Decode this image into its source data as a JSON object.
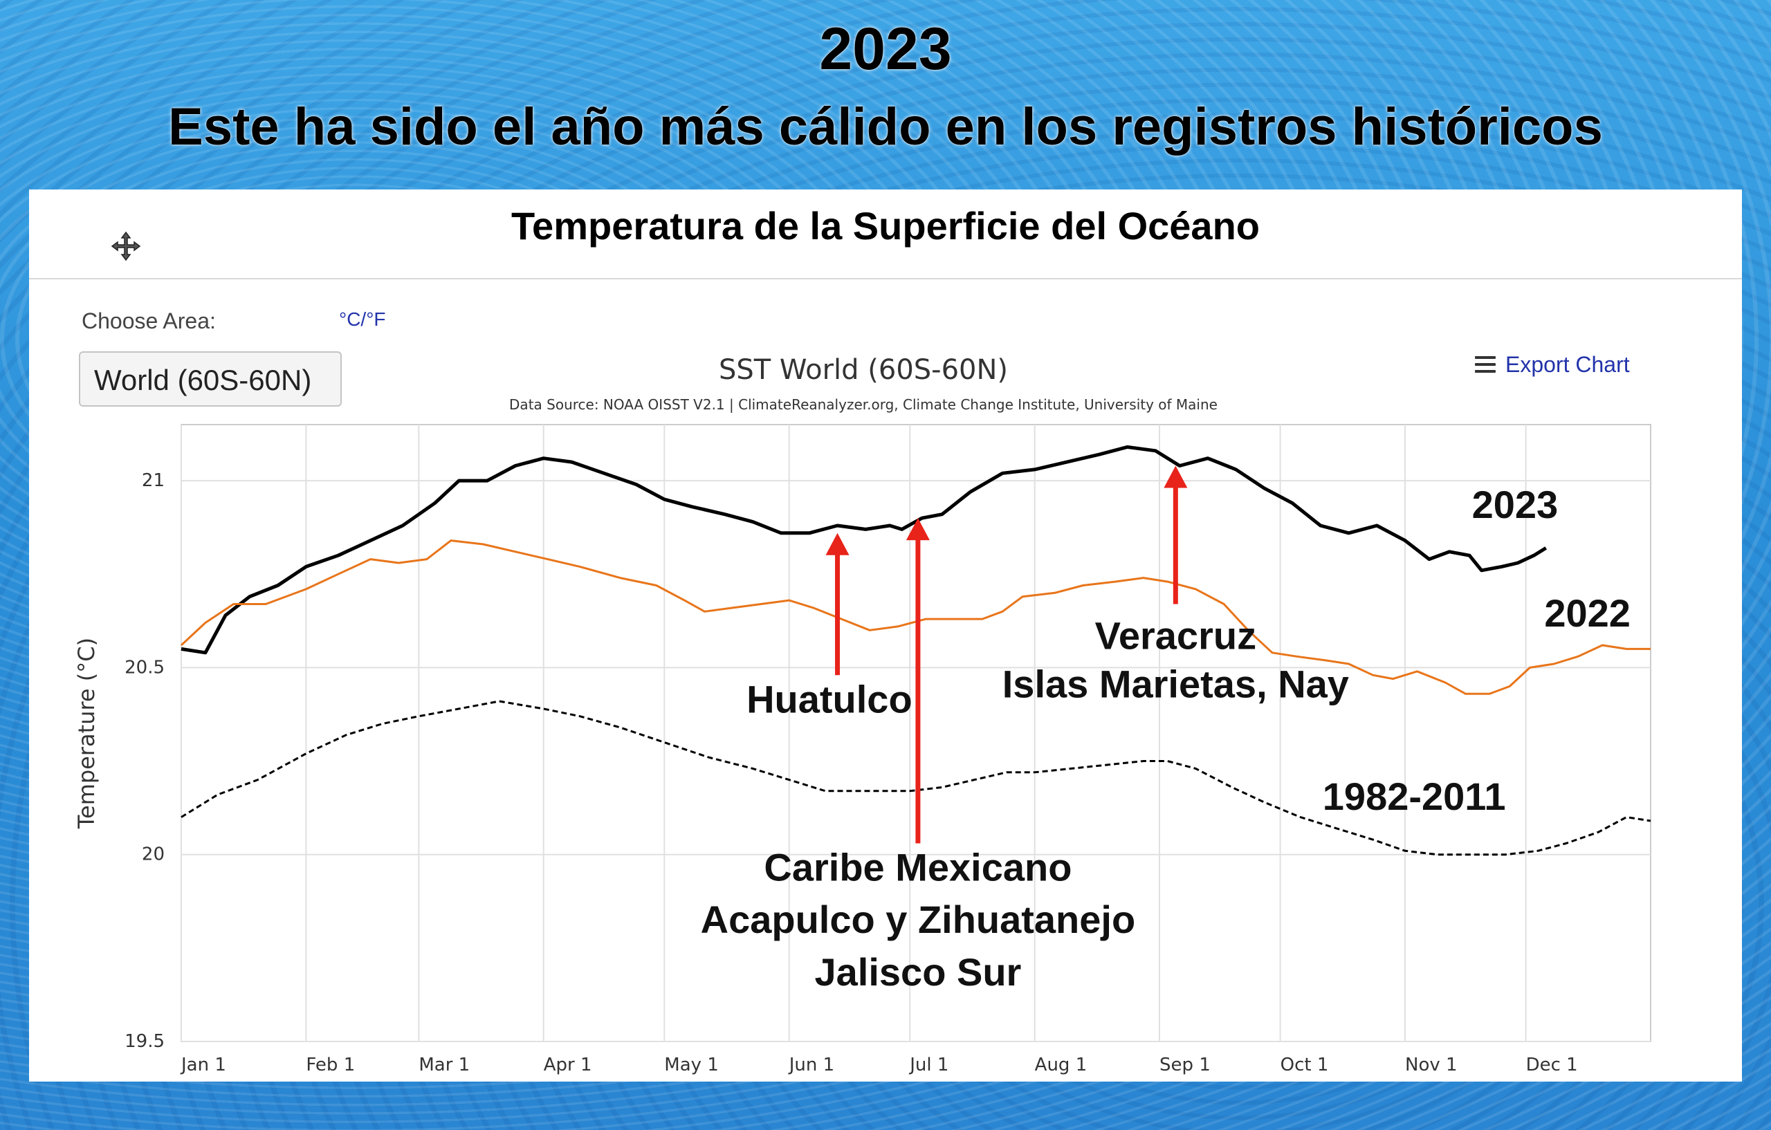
{
  "headline": {
    "year": "2023",
    "subtitle": "Este ha sido el año más cálido en los registros históricos"
  },
  "panel": {
    "title": "Temperatura de la Superficie del Océano",
    "choose_area_label": "Choose Area:",
    "unit_toggle": "°C/°F",
    "area_selected": "World (60S-60N)",
    "export_label": "Export Chart"
  },
  "chart_data": {
    "type": "line",
    "title": "SST World (60S-60N)",
    "subtitle": "Data Source: NOAA OISST V2.1 | ClimateReanalyzer.org, Climate Change Institute, University of Maine",
    "xlabel": "",
    "ylabel": "Temperature (°C)",
    "x_type": "day_of_year",
    "xlim": [
      1,
      366
    ],
    "ylim": [
      19.5,
      21.15
    ],
    "yticks": [
      19.5,
      20,
      20.5,
      21
    ],
    "ytick_labels": [
      "19.5",
      "20",
      "20.5",
      "21"
    ],
    "xticks": [
      1,
      32,
      60,
      91,
      121,
      152,
      182,
      213,
      244,
      274,
      305,
      335
    ],
    "xtick_labels": [
      "Jan 1",
      "Feb 1",
      "Mar 1",
      "Apr 1",
      "May 1",
      "Jun 1",
      "Jul 1",
      "Aug 1",
      "Sep 1",
      "Oct 1",
      "Nov 1",
      "Dec 1"
    ],
    "grid": true,
    "legend": "none",
    "series": [
      {
        "name": "2023",
        "color": "#000000",
        "dash": "solid",
        "points": [
          [
            1,
            20.55
          ],
          [
            7,
            20.54
          ],
          [
            12,
            20.64
          ],
          [
            18,
            20.69
          ],
          [
            25,
            20.72
          ],
          [
            32,
            20.77
          ],
          [
            40,
            20.8
          ],
          [
            48,
            20.84
          ],
          [
            56,
            20.88
          ],
          [
            64,
            20.94
          ],
          [
            70,
            21.0
          ],
          [
            77,
            21.0
          ],
          [
            84,
            21.04
          ],
          [
            91,
            21.06
          ],
          [
            98,
            21.05
          ],
          [
            106,
            21.02
          ],
          [
            114,
            20.99
          ],
          [
            121,
            20.95
          ],
          [
            128,
            20.93
          ],
          [
            136,
            20.91
          ],
          [
            143,
            20.89
          ],
          [
            150,
            20.86
          ],
          [
            157,
            20.86
          ],
          [
            164,
            20.88
          ],
          [
            171,
            20.87
          ],
          [
            177,
            20.88
          ],
          [
            180,
            20.87
          ],
          [
            185,
            20.9
          ],
          [
            190,
            20.91
          ],
          [
            197,
            20.97
          ],
          [
            205,
            21.02
          ],
          [
            213,
            21.03
          ],
          [
            221,
            21.05
          ],
          [
            229,
            21.07
          ],
          [
            236,
            21.09
          ],
          [
            243,
            21.08
          ],
          [
            249,
            21.04
          ],
          [
            256,
            21.06
          ],
          [
            263,
            21.03
          ],
          [
            270,
            20.98
          ],
          [
            277,
            20.94
          ],
          [
            284,
            20.88
          ],
          [
            291,
            20.86
          ],
          [
            298,
            20.88
          ],
          [
            305,
            20.84
          ],
          [
            311,
            20.79
          ],
          [
            316,
            20.81
          ],
          [
            321,
            20.8
          ],
          [
            324,
            20.76
          ],
          [
            329,
            20.77
          ],
          [
            333,
            20.78
          ],
          [
            337,
            20.8
          ],
          [
            340,
            20.82
          ]
        ]
      },
      {
        "name": "2022",
        "color": "#e8751a",
        "dash": "solid",
        "points": [
          [
            1,
            20.56
          ],
          [
            7,
            20.62
          ],
          [
            14,
            20.67
          ],
          [
            22,
            20.67
          ],
          [
            32,
            20.71
          ],
          [
            40,
            20.75
          ],
          [
            48,
            20.79
          ],
          [
            55,
            20.78
          ],
          [
            62,
            20.79
          ],
          [
            68,
            20.84
          ],
          [
            76,
            20.83
          ],
          [
            84,
            20.81
          ],
          [
            92,
            20.79
          ],
          [
            100,
            20.77
          ],
          [
            110,
            20.74
          ],
          [
            119,
            20.72
          ],
          [
            126,
            20.68
          ],
          [
            131,
            20.65
          ],
          [
            138,
            20.66
          ],
          [
            145,
            20.67
          ],
          [
            152,
            20.68
          ],
          [
            158,
            20.66
          ],
          [
            165,
            20.63
          ],
          [
            172,
            20.6
          ],
          [
            179,
            20.61
          ],
          [
            186,
            20.63
          ],
          [
            193,
            20.63
          ],
          [
            200,
            20.63
          ],
          [
            205,
            20.65
          ],
          [
            210,
            20.69
          ],
          [
            218,
            20.7
          ],
          [
            225,
            20.72
          ],
          [
            233,
            20.73
          ],
          [
            240,
            20.74
          ],
          [
            246,
            20.73
          ],
          [
            253,
            20.71
          ],
          [
            260,
            20.67
          ],
          [
            266,
            20.6
          ],
          [
            272,
            20.54
          ],
          [
            278,
            20.53
          ],
          [
            285,
            20.52
          ],
          [
            291,
            20.51
          ],
          [
            297,
            20.48
          ],
          [
            302,
            20.47
          ],
          [
            308,
            20.49
          ],
          [
            315,
            20.46
          ],
          [
            320,
            20.43
          ],
          [
            326,
            20.43
          ],
          [
            331,
            20.45
          ],
          [
            336,
            20.5
          ],
          [
            342,
            20.51
          ],
          [
            348,
            20.53
          ],
          [
            354,
            20.56
          ],
          [
            360,
            20.55
          ],
          [
            366,
            20.55
          ]
        ]
      },
      {
        "name": "1982-2011",
        "color": "#000000",
        "dash": "dashed",
        "points": [
          [
            1,
            20.1
          ],
          [
            10,
            20.16
          ],
          [
            20,
            20.2
          ],
          [
            32,
            20.27
          ],
          [
            42,
            20.32
          ],
          [
            51,
            20.35
          ],
          [
            60,
            20.37
          ],
          [
            70,
            20.39
          ],
          [
            80,
            20.41
          ],
          [
            91,
            20.39
          ],
          [
            100,
            20.37
          ],
          [
            110,
            20.34
          ],
          [
            121,
            20.3
          ],
          [
            132,
            20.26
          ],
          [
            143,
            20.23
          ],
          [
            152,
            20.2
          ],
          [
            161,
            20.17
          ],
          [
            171,
            20.17
          ],
          [
            182,
            20.17
          ],
          [
            190,
            20.18
          ],
          [
            198,
            20.2
          ],
          [
            206,
            20.22
          ],
          [
            213,
            20.22
          ],
          [
            222,
            20.23
          ],
          [
            231,
            20.24
          ],
          [
            240,
            20.25
          ],
          [
            246,
            20.25
          ],
          [
            253,
            20.23
          ],
          [
            262,
            20.18
          ],
          [
            270,
            20.14
          ],
          [
            279,
            20.1
          ],
          [
            288,
            20.07
          ],
          [
            297,
            20.04
          ],
          [
            305,
            20.01
          ],
          [
            313,
            20.0
          ],
          [
            322,
            20.0
          ],
          [
            330,
            20.0
          ],
          [
            338,
            20.01
          ],
          [
            345,
            20.03
          ],
          [
            353,
            20.06
          ],
          [
            360,
            20.1
          ],
          [
            366,
            20.09
          ]
        ]
      }
    ],
    "annotations": [
      {
        "text": "2023",
        "x": 343,
        "y": 20.9
      },
      {
        "text": "2022",
        "x": 361,
        "y": 20.61
      },
      {
        "text": "1982-2011",
        "x": 330,
        "y": 20.12
      },
      {
        "text": "Veracruz",
        "x": 248,
        "y": 20.55
      },
      {
        "text": "Islas Marietas, Nay",
        "x": 248,
        "y": 20.42
      },
      {
        "text": "Huatulco",
        "x": 162,
        "y": 20.38
      },
      {
        "text": "Caribe Mexicano",
        "x": 184,
        "y": 19.93
      },
      {
        "text": "Acapulco y Zihuatanejo",
        "x": 184,
        "y": 19.79
      },
      {
        "text": "Jalisco Sur",
        "x": 184,
        "y": 19.65
      }
    ],
    "arrows": [
      {
        "x": 164,
        "y_from": 20.48,
        "y_to": 20.86,
        "color": "#e8231a"
      },
      {
        "x": 184,
        "y_from": 20.03,
        "y_to": 20.9,
        "color": "#e8231a"
      },
      {
        "x": 248,
        "y_from": 20.67,
        "y_to": 21.04,
        "color": "#e8231a"
      }
    ]
  }
}
